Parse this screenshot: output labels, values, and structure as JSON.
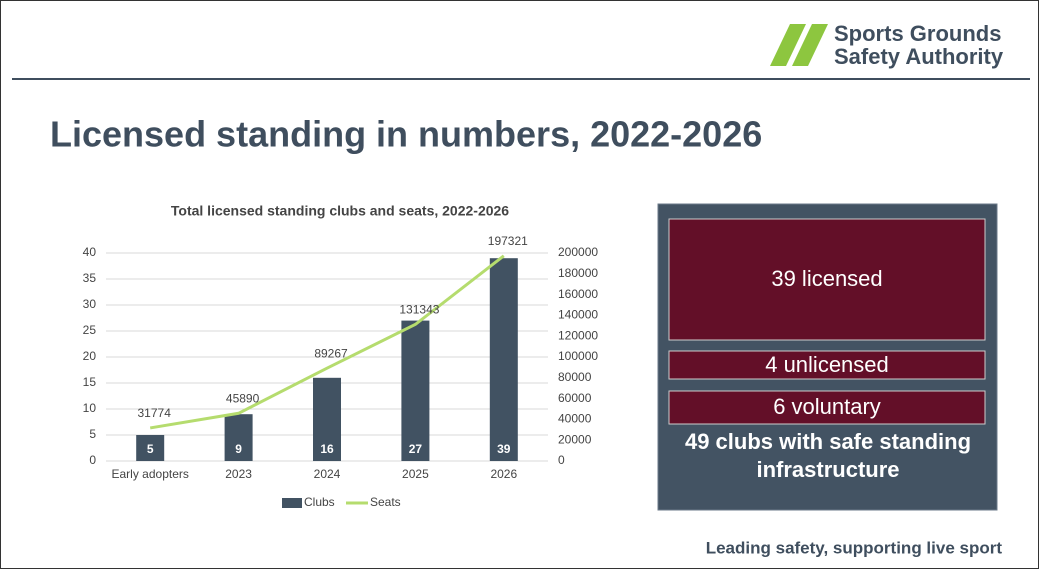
{
  "header": {
    "logo_line1": "Sports Grounds",
    "logo_line2": "Safety Authority"
  },
  "title": "Licensed standing in numbers, 2022-2026",
  "chart_data": {
    "type": "bar",
    "title": "Total licensed standing clubs and seats, 2022-2026",
    "categories": [
      "Early adopters",
      "2023",
      "2024",
      "2025",
      "2026"
    ],
    "series": [
      {
        "name": "Clubs",
        "type": "bar",
        "color": "#415262",
        "values": [
          5,
          9,
          16,
          27,
          39
        ]
      },
      {
        "name": "Seats",
        "type": "line",
        "axis": "y2",
        "color": "#b5dc6e",
        "values": [
          31774,
          45890,
          89267,
          131343,
          197321
        ]
      }
    ],
    "ylim": [
      0,
      40
    ],
    "yticks": [
      0,
      5,
      10,
      15,
      20,
      25,
      30,
      35,
      40
    ],
    "y2lim": [
      0,
      200000
    ],
    "y2ticks": [
      0,
      20000,
      40000,
      60000,
      80000,
      100000,
      120000,
      140000,
      160000,
      180000,
      200000
    ],
    "grid": true,
    "legend": "bottom"
  },
  "panel": {
    "boxes": [
      "39 licensed",
      "4 unlicensed",
      "6 voluntary"
    ],
    "summary_line1": "49 clubs with safe standing",
    "summary_line2": "infrastructure"
  },
  "footer": "Leading safety, supporting live sport"
}
